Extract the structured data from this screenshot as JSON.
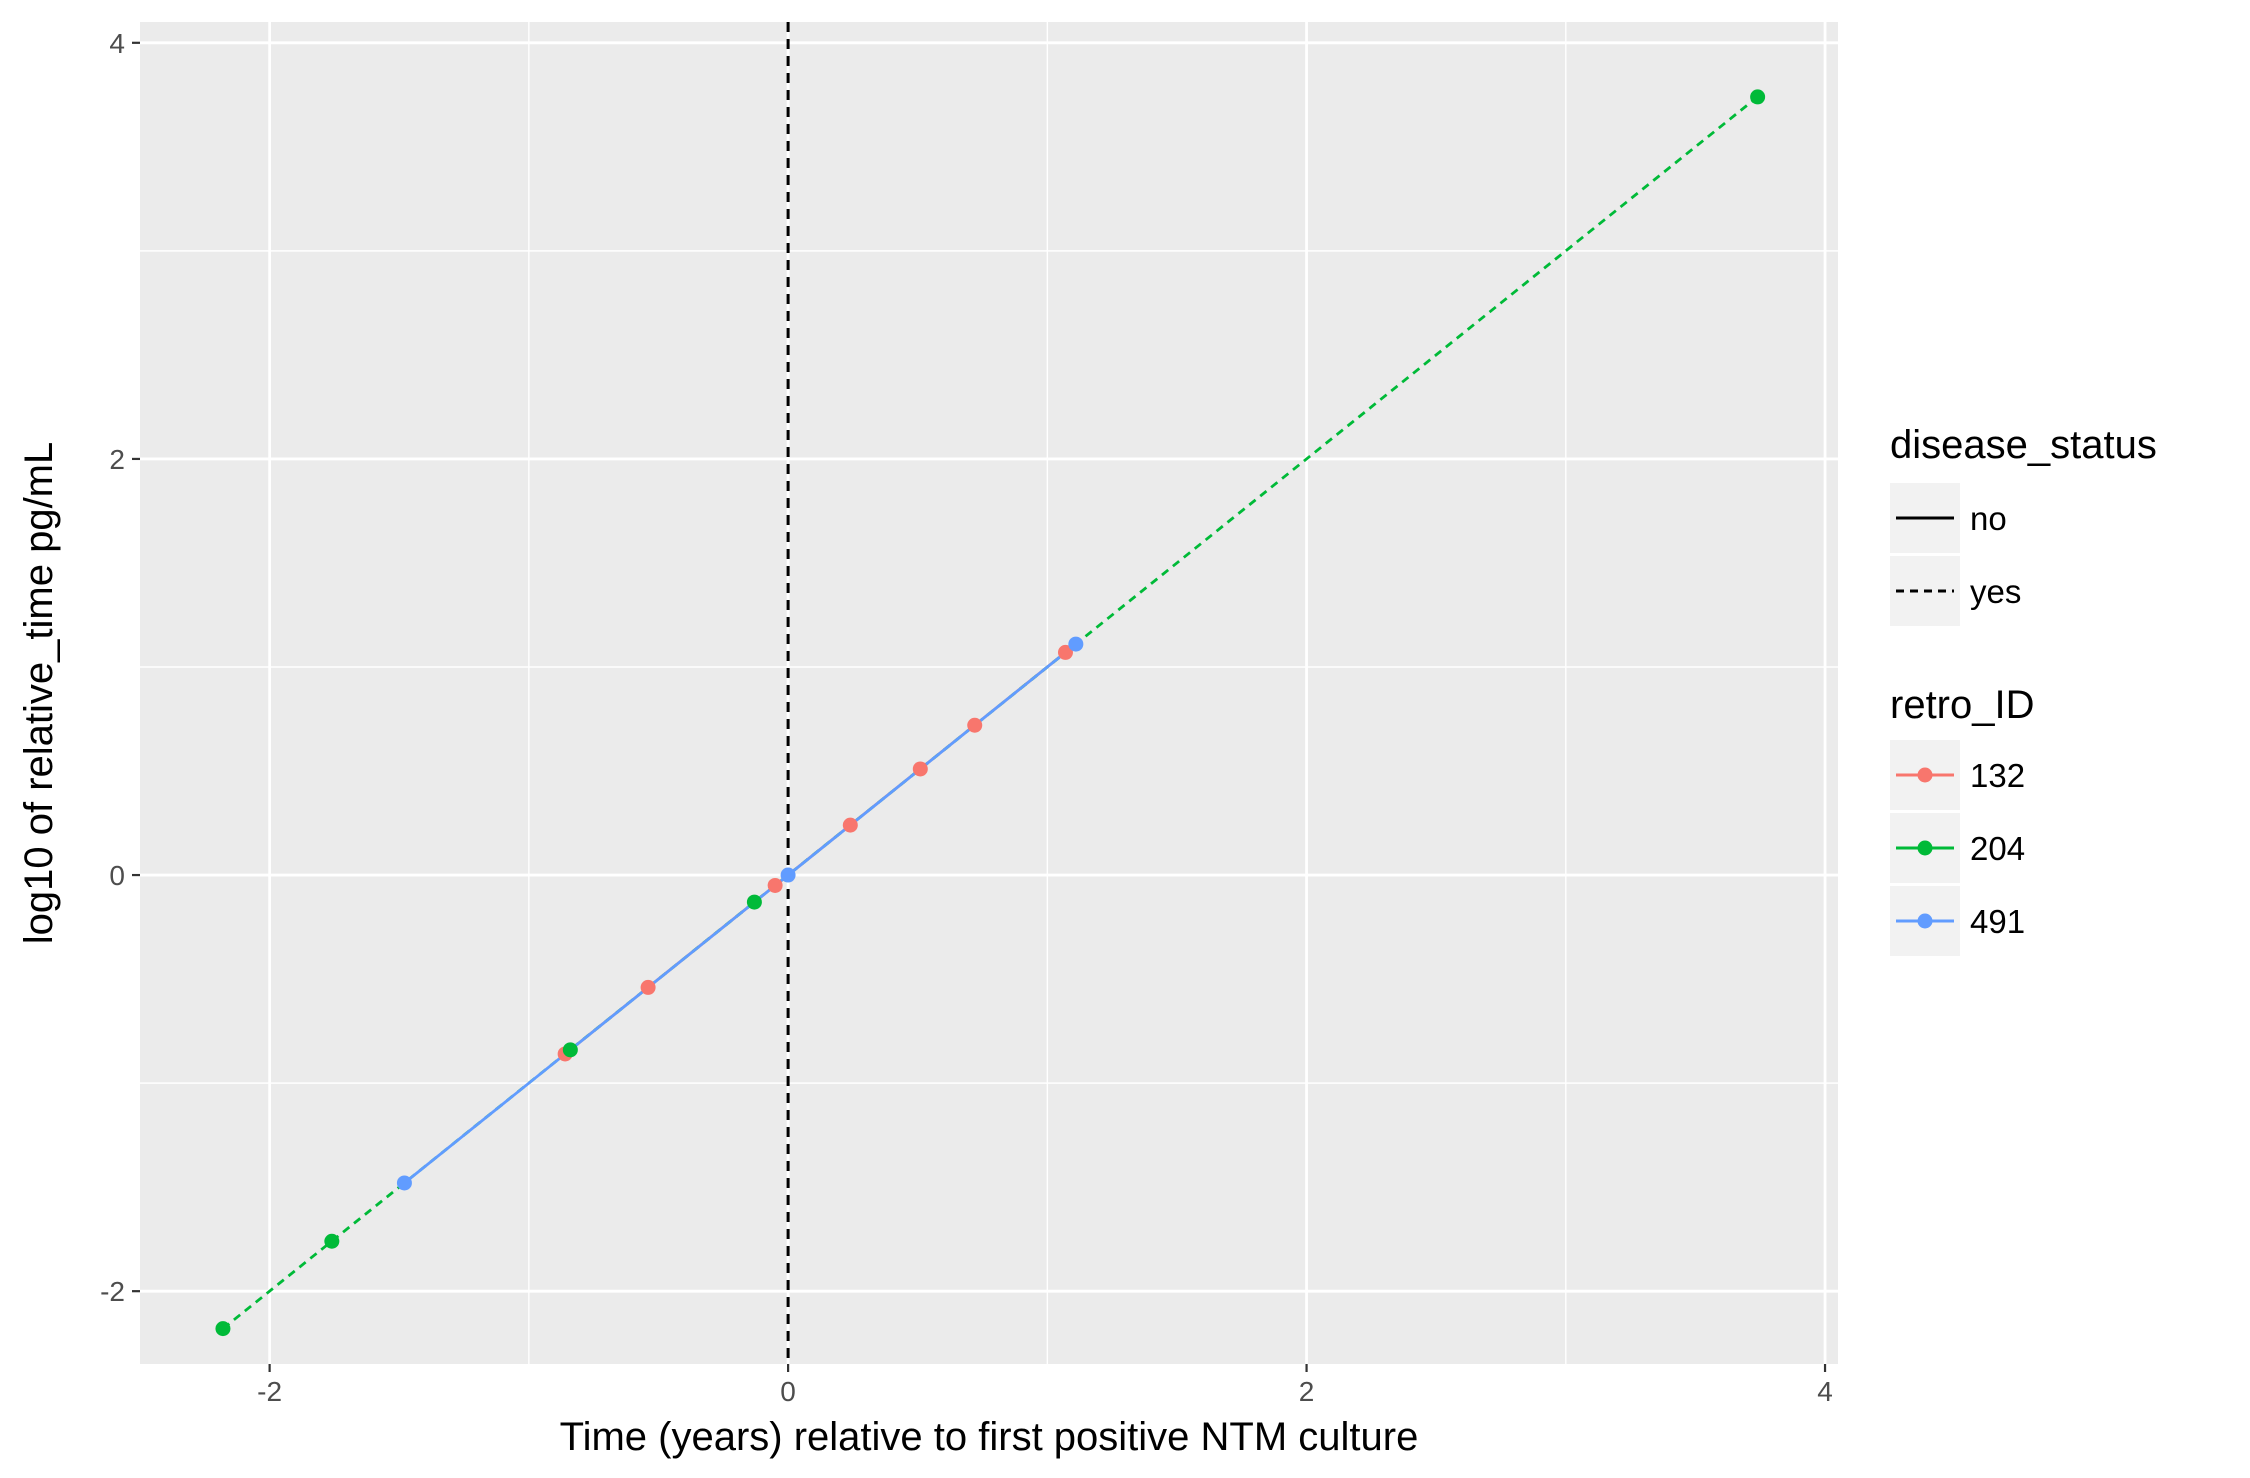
{
  "chart_data": {
    "type": "line",
    "title": "",
    "xlabel": "Time (years) relative to first positive NTM culture",
    "ylabel": "log10 of relative_time pg/mL",
    "xlim": [
      -2.5,
      4.05
    ],
    "ylim": [
      -2.35,
      4.1
    ],
    "x_ticks": [
      -2,
      0,
      2,
      4
    ],
    "y_ticks": [
      -2,
      0,
      2,
      4
    ],
    "x_tick_labels": [
      "-2",
      "0",
      "2",
      "4"
    ],
    "y_tick_labels": [
      "-2",
      "0",
      "2",
      "4"
    ],
    "grid": true,
    "panel_background": "#ebebeb",
    "reference_line": {
      "x": 0,
      "style": "dashed",
      "color": "#000000"
    },
    "series": [
      {
        "name": "132",
        "color": "#f8766d",
        "disease_status": "no",
        "x": [
          -0.86,
          -0.54,
          -0.05,
          0.24,
          0.51,
          0.72,
          1.07
        ],
        "y": [
          -0.86,
          -0.54,
          -0.05,
          0.24,
          0.51,
          0.72,
          1.07
        ]
      },
      {
        "name": "204",
        "color": "#00ba38",
        "disease_status": "yes",
        "x": [
          -2.18,
          -1.76,
          -0.84,
          -0.13,
          3.74
        ],
        "y": [
          -2.18,
          -1.76,
          -0.84,
          -0.13,
          3.74
        ]
      },
      {
        "name": "491",
        "color": "#619cff",
        "disease_status": "no",
        "x": [
          -1.48,
          0.0,
          1.11
        ],
        "y": [
          -1.48,
          0.0,
          1.11
        ]
      }
    ],
    "legend": {
      "placement": "right",
      "linetype_title": "disease_status",
      "linetype_entries": [
        {
          "label": "no",
          "style": "solid"
        },
        {
          "label": "yes",
          "style": "dashed"
        }
      ],
      "color_title": "retro_ID",
      "color_entries": [
        {
          "label": "132",
          "color": "#f8766d"
        },
        {
          "label": "204",
          "color": "#00ba38"
        },
        {
          "label": "491",
          "color": "#619cff"
        }
      ]
    }
  }
}
